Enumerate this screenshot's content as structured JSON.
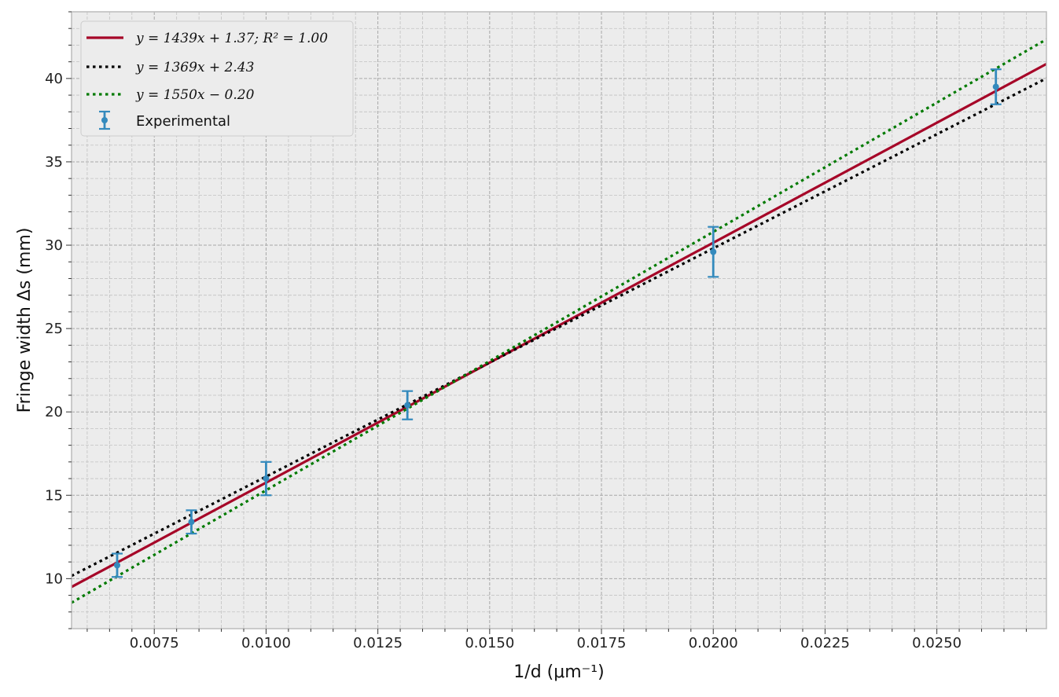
{
  "chart_data": {
    "type": "scatter",
    "xlabel": "1/d (μm⁻¹)",
    "ylabel": "Fringe width Δs (mm)",
    "xlim": [
      0.00565,
      0.02745
    ],
    "ylim": [
      7.0,
      44.0
    ],
    "xticks": [
      0.0075,
      0.01,
      0.0125,
      0.015,
      0.0175,
      0.02,
      0.0225,
      0.025
    ],
    "xtick_labels": [
      "0.0075",
      "0.0100",
      "0.0125",
      "0.0150",
      "0.0175",
      "0.0200",
      "0.0225",
      "0.0250"
    ],
    "yticks": [
      10,
      15,
      20,
      25,
      30,
      35,
      40
    ],
    "ytick_labels": [
      "10",
      "15",
      "20",
      "25",
      "30",
      "35",
      "40"
    ],
    "grid": true,
    "legend_position": "top-left",
    "background": "#ececec",
    "fit_lines": [
      {
        "label": "y = 1439x + 1.37;  R² = 1.00",
        "slope": 1439,
        "intercept": 1.37,
        "color": "#a60628",
        "style": "solid"
      },
      {
        "label": "y = 1369x + 2.43",
        "slope": 1369,
        "intercept": 2.43,
        "color": "#000000",
        "style": "dotted"
      },
      {
        "label": "y = 1550x − 0.20",
        "slope": 1550,
        "intercept": -0.2,
        "color": "#007a00",
        "style": "dotted"
      }
    ],
    "experimental": {
      "name": "Experimental",
      "color": "#348abd",
      "points": [
        {
          "x": 0.00667,
          "y": 10.8,
          "err": 0.7
        },
        {
          "x": 0.00833,
          "y": 13.4,
          "err": 0.7
        },
        {
          "x": 0.01,
          "y": 16.0,
          "err": 1.0
        },
        {
          "x": 0.01316,
          "y": 20.4,
          "err": 0.85
        },
        {
          "x": 0.02,
          "y": 29.6,
          "err": 1.5
        },
        {
          "x": 0.02632,
          "y": 39.5,
          "err": 1.05
        }
      ]
    }
  }
}
